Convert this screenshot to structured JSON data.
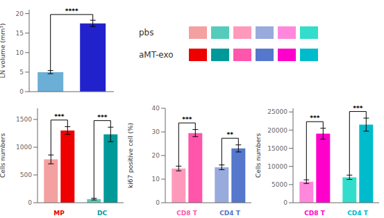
{
  "chart_data": [
    {
      "type": "bar",
      "categories": [
        null,
        null
      ],
      "values": [
        5.0,
        17.5
      ],
      "errors": [
        0.4,
        0.8
      ],
      "colors": [
        "#6BAED6",
        "#2222CC"
      ],
      "ylabel": "LN volume (mm³)",
      "ylim": [
        0,
        21
      ],
      "yticks": [
        0,
        5,
        10,
        15,
        20
      ],
      "tick_labels": "y",
      "annotations": [
        "****"
      ]
    },
    {
      "type": "bar",
      "categories": [
        "MP",
        "DC"
      ],
      "series": [
        {
          "name": "pbs",
          "colors": [
            "#F4A0A0",
            "#55CCBB"
          ],
          "values": [
            780,
            65
          ],
          "errors": [
            80,
            15
          ]
        },
        {
          "name": "aMT-exo",
          "colors": [
            "#EE0000",
            "#009999"
          ],
          "values": [
            1300,
            1230
          ],
          "errors": [
            70,
            130
          ]
        }
      ],
      "ylabel": "Cells numbers",
      "ylim": [
        0,
        1700
      ],
      "yticks": [
        0,
        500,
        1000,
        1500
      ],
      "annotations": [
        "***",
        "***"
      ],
      "legend": "top"
    },
    {
      "type": "bar",
      "categories": [
        "CD8 T",
        "CD4 T"
      ],
      "series": [
        {
          "name": "pbs",
          "colors": [
            "#FF99BB",
            "#99AADD"
          ],
          "values": [
            14.5,
            15.0
          ],
          "errors": [
            1.0,
            1.0
          ]
        },
        {
          "name": "aMT-exo",
          "colors": [
            "#FF55AA",
            "#5577CC"
          ],
          "values": [
            29.5,
            23.0
          ],
          "errors": [
            1.5,
            1.5
          ]
        }
      ],
      "ylabel": "ki67 positive cell (%)",
      "ylim": [
        0,
        40
      ],
      "yticks": [
        0,
        10,
        20,
        30,
        40
      ],
      "annotations": [
        "***",
        "**"
      ]
    },
    {
      "type": "bar",
      "categories": [
        "CD8 T",
        "CD4 T"
      ],
      "series": [
        {
          "name": "pbs",
          "colors": [
            "#FF88DD",
            "#33DDCC"
          ],
          "values": [
            5800,
            7000
          ],
          "errors": [
            500,
            600
          ]
        },
        {
          "name": "aMT-exo",
          "colors": [
            "#FF00CC",
            "#00BBCC"
          ],
          "values": [
            19000,
            21500
          ],
          "errors": [
            1500,
            1800
          ]
        }
      ],
      "ylabel": "Cells numbers",
      "ylim": [
        0,
        26000
      ],
      "yticks": [
        0,
        5000,
        10000,
        15000,
        20000,
        25000
      ],
      "annotations": [
        "***",
        "***"
      ]
    }
  ]
}
